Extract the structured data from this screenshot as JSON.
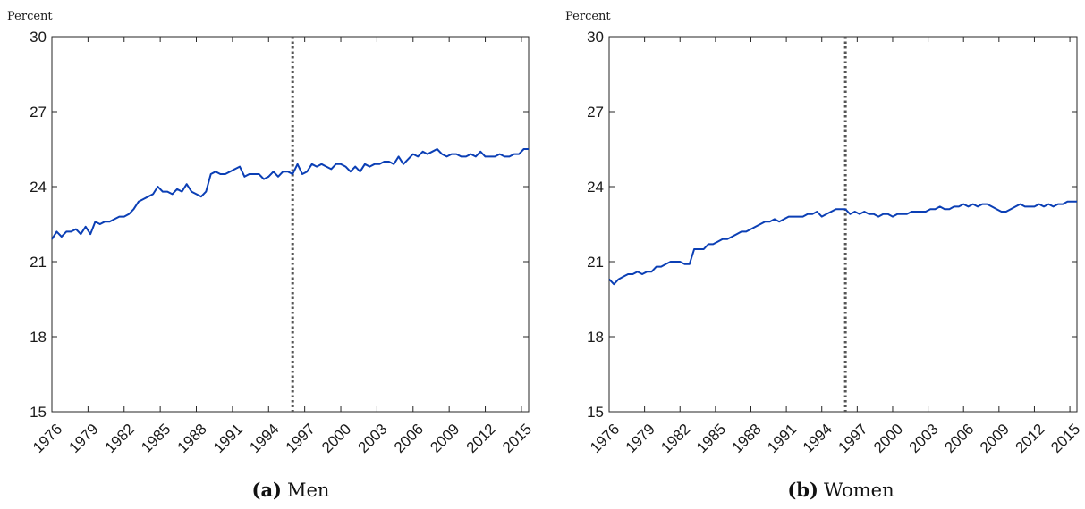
{
  "colors": {
    "line": "#0b3fb5",
    "axis": "#262626",
    "vline": "#555555"
  },
  "chart_data": [
    {
      "type": "line",
      "panel": "a",
      "caption_tag": "(a)",
      "caption_text": "Men",
      "ylabel": "Percent",
      "xlim": [
        1976.0,
        2015.6
      ],
      "ylim": [
        15,
        30
      ],
      "yticks": [
        15,
        18,
        21,
        24,
        27,
        30
      ],
      "xticks": [
        1976,
        1979,
        1982,
        1985,
        1988,
        1991,
        1994,
        1997,
        2000,
        2003,
        2006,
        2009,
        2012,
        2015
      ],
      "vline": 1996.0,
      "grid": false,
      "x": [
        1976.0,
        1976.4,
        1976.8,
        1977.2,
        1977.6,
        1978.0,
        1978.4,
        1978.8,
        1979.2,
        1979.6,
        1980.0,
        1980.4,
        1980.8,
        1981.2,
        1981.6,
        1982.0,
        1982.4,
        1982.8,
        1983.2,
        1983.6,
        1984.0,
        1984.4,
        1984.8,
        1985.2,
        1985.6,
        1986.0,
        1986.4,
        1986.8,
        1987.2,
        1987.6,
        1988.0,
        1988.4,
        1988.8,
        1989.2,
        1989.6,
        1990.0,
        1990.4,
        1990.8,
        1991.2,
        1991.6,
        1992.0,
        1992.4,
        1992.8,
        1993.2,
        1993.6,
        1994.0,
        1994.4,
        1994.8,
        1995.2,
        1995.6,
        1996.0,
        1996.4,
        1996.8,
        1997.2,
        1997.6,
        1998.0,
        1998.4,
        1998.8,
        1999.2,
        1999.6,
        2000.0,
        2000.4,
        2000.8,
        2001.2,
        2001.6,
        2002.0,
        2002.4,
        2002.8,
        2003.2,
        2003.6,
        2004.0,
        2004.4,
        2004.8,
        2005.2,
        2005.6,
        2006.0,
        2006.4,
        2006.8,
        2007.2,
        2007.6,
        2008.0,
        2008.4,
        2008.8,
        2009.2,
        2009.6,
        2010.0,
        2010.4,
        2010.8,
        2011.2,
        2011.6,
        2012.0,
        2012.4,
        2012.8,
        2013.2,
        2013.6,
        2014.0,
        2014.4,
        2014.8,
        2015.2,
        2015.6
      ],
      "y": [
        21.9,
        22.2,
        22.0,
        22.2,
        22.2,
        22.3,
        22.1,
        22.4,
        22.1,
        22.6,
        22.5,
        22.6,
        22.6,
        22.7,
        22.8,
        22.8,
        22.9,
        23.1,
        23.4,
        23.5,
        23.6,
        23.7,
        24.0,
        23.8,
        23.8,
        23.7,
        23.9,
        23.8,
        24.1,
        23.8,
        23.7,
        23.6,
        23.8,
        24.5,
        24.6,
        24.5,
        24.5,
        24.6,
        24.7,
        24.8,
        24.4,
        24.5,
        24.5,
        24.5,
        24.3,
        24.4,
        24.6,
        24.4,
        24.6,
        24.6,
        24.5,
        24.9,
        24.5,
        24.6,
        24.9,
        24.8,
        24.9,
        24.8,
        24.7,
        24.9,
        24.9,
        24.8,
        24.6,
        24.8,
        24.6,
        24.9,
        24.8,
        24.9,
        24.9,
        25.0,
        25.0,
        24.9,
        25.2,
        24.9,
        25.1,
        25.3,
        25.2,
        25.4,
        25.3,
        25.4,
        25.5,
        25.3,
        25.2,
        25.3,
        25.3,
        25.2,
        25.2,
        25.3,
        25.2,
        25.4,
        25.2,
        25.2,
        25.2,
        25.3,
        25.2,
        25.2,
        25.3,
        25.3,
        25.5,
        25.5
      ]
    },
    {
      "type": "line",
      "panel": "b",
      "caption_tag": "(b)",
      "caption_text": "Women",
      "ylabel": "Percent",
      "xlim": [
        1976.0,
        2015.6
      ],
      "ylim": [
        15,
        30
      ],
      "yticks": [
        15,
        18,
        21,
        24,
        27,
        30
      ],
      "xticks": [
        1976,
        1979,
        1982,
        1985,
        1988,
        1991,
        1994,
        1997,
        2000,
        2003,
        2006,
        2009,
        2012,
        2015
      ],
      "vline": 1996.0,
      "grid": false,
      "x": [
        1976.0,
        1976.4,
        1976.8,
        1977.2,
        1977.6,
        1978.0,
        1978.4,
        1978.8,
        1979.2,
        1979.6,
        1980.0,
        1980.4,
        1980.8,
        1981.2,
        1981.6,
        1982.0,
        1982.4,
        1982.8,
        1983.2,
        1983.6,
        1984.0,
        1984.4,
        1984.8,
        1985.2,
        1985.6,
        1986.0,
        1986.4,
        1986.8,
        1987.2,
        1987.6,
        1988.0,
        1988.4,
        1988.8,
        1989.2,
        1989.6,
        1990.0,
        1990.4,
        1990.8,
        1991.2,
        1991.6,
        1992.0,
        1992.4,
        1992.8,
        1993.2,
        1993.6,
        1994.0,
        1994.4,
        1994.8,
        1995.2,
        1995.6,
        1996.0,
        1996.4,
        1996.8,
        1997.2,
        1997.6,
        1998.0,
        1998.4,
        1998.8,
        1999.2,
        1999.6,
        2000.0,
        2000.4,
        2000.8,
        2001.2,
        2001.6,
        2002.0,
        2002.4,
        2002.8,
        2003.2,
        2003.6,
        2004.0,
        2004.4,
        2004.8,
        2005.2,
        2005.6,
        2006.0,
        2006.4,
        2006.8,
        2007.2,
        2007.6,
        2008.0,
        2008.4,
        2008.8,
        2009.2,
        2009.6,
        2010.0,
        2010.4,
        2010.8,
        2011.2,
        2011.6,
        2012.0,
        2012.4,
        2012.8,
        2013.2,
        2013.6,
        2014.0,
        2014.4,
        2014.8,
        2015.2,
        2015.6
      ],
      "y": [
        20.3,
        20.1,
        20.3,
        20.4,
        20.5,
        20.5,
        20.6,
        20.5,
        20.6,
        20.6,
        20.8,
        20.8,
        20.9,
        21.0,
        21.0,
        21.0,
        20.9,
        20.9,
        21.5,
        21.5,
        21.5,
        21.7,
        21.7,
        21.8,
        21.9,
        21.9,
        22.0,
        22.1,
        22.2,
        22.2,
        22.3,
        22.4,
        22.5,
        22.6,
        22.6,
        22.7,
        22.6,
        22.7,
        22.8,
        22.8,
        22.8,
        22.8,
        22.9,
        22.9,
        23.0,
        22.8,
        22.9,
        23.0,
        23.1,
        23.1,
        23.1,
        22.9,
        23.0,
        22.9,
        23.0,
        22.9,
        22.9,
        22.8,
        22.9,
        22.9,
        22.8,
        22.9,
        22.9,
        22.9,
        23.0,
        23.0,
        23.0,
        23.0,
        23.1,
        23.1,
        23.2,
        23.1,
        23.1,
        23.2,
        23.2,
        23.3,
        23.2,
        23.3,
        23.2,
        23.3,
        23.3,
        23.2,
        23.1,
        23.0,
        23.0,
        23.1,
        23.2,
        23.3,
        23.2,
        23.2,
        23.2,
        23.3,
        23.2,
        23.3,
        23.2,
        23.3,
        23.3,
        23.4,
        23.4,
        23.4
      ]
    }
  ]
}
